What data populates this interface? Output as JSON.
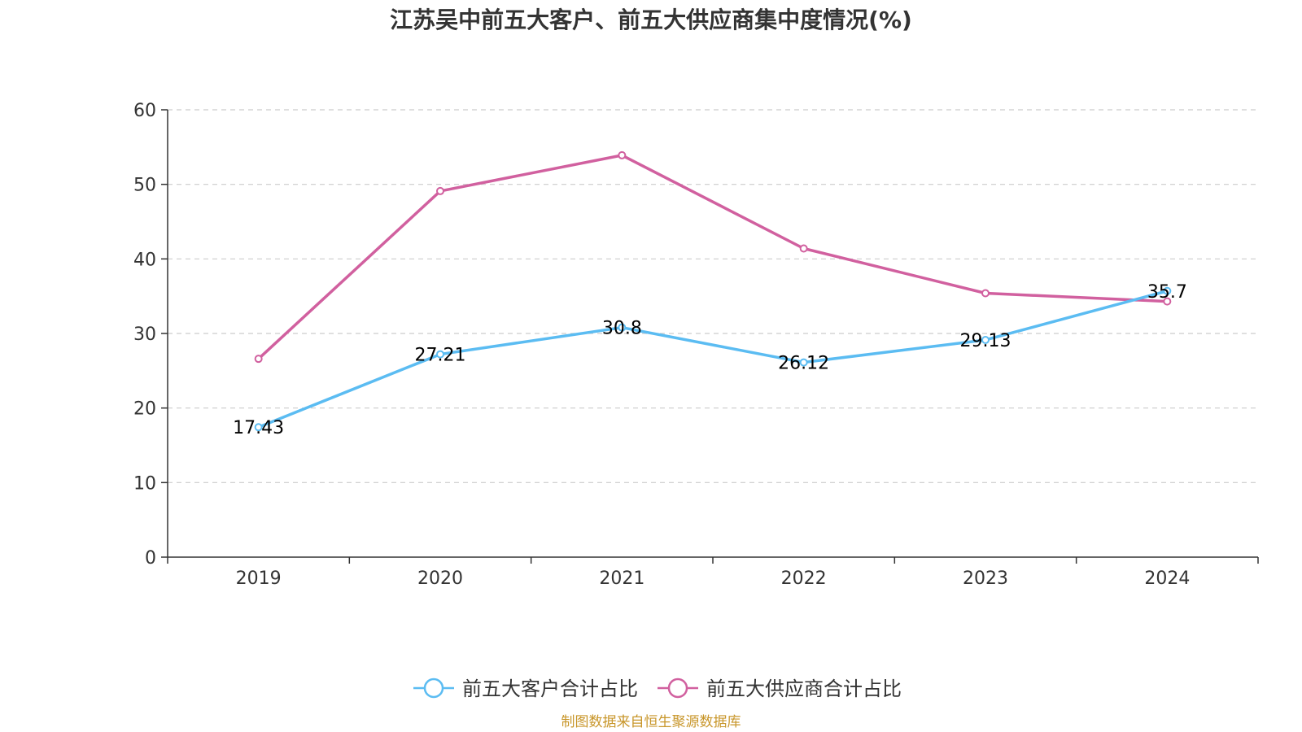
{
  "chart_data": {
    "type": "line",
    "title": "江苏吴中前五大客户、前五大供应商集中度情况(%)",
    "categories": [
      "2019",
      "2020",
      "2021",
      "2022",
      "2023",
      "2024"
    ],
    "ylim": [
      0,
      60
    ],
    "yticks": [
      0,
      10,
      20,
      30,
      40,
      50,
      60
    ],
    "grid": true,
    "legend_position": "bottom",
    "series": [
      {
        "name": "前五大客户合计占比",
        "color": "#5bbcf2",
        "values": [
          17.43,
          27.21,
          30.8,
          26.12,
          29.13,
          35.7
        ],
        "labels": [
          "17.43",
          "27.21",
          "30.8",
          "26.12",
          "29.13",
          "35.7"
        ]
      },
      {
        "name": "前五大供应商合计占比",
        "color": "#d1609f",
        "values": [
          26.6,
          49.1,
          53.9,
          41.4,
          35.4,
          34.3
        ]
      }
    ]
  },
  "source": "制图数据来自恒生聚源数据库"
}
